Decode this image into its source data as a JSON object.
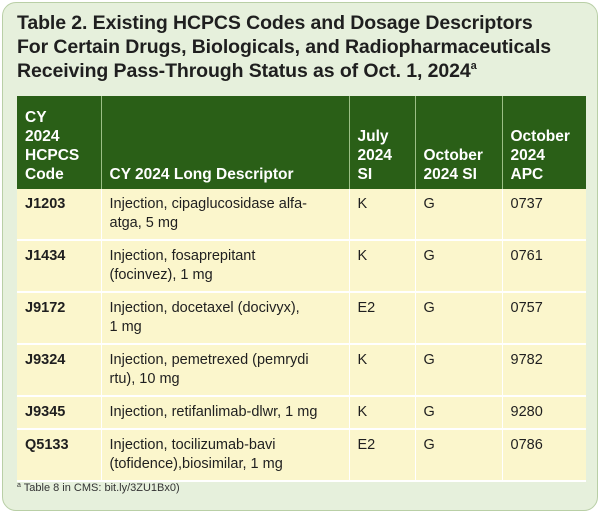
{
  "title": {
    "lines": [
      "Table 2. Existing HCPCS Codes and Dosage Descriptors",
      "For Certain Drugs, Biologicals, and Radiopharmaceuticals",
      "Receiving Pass-Through Status as of Oct. 1, 2024"
    ],
    "footnote_marker": "a"
  },
  "table": {
    "headers": [
      [
        "CY",
        "2024",
        "HCPCS",
        "Code"
      ],
      [
        "CY 2024 Long Descriptor"
      ],
      [
        "July",
        "2024",
        "SI"
      ],
      [
        "October",
        "2024 SI"
      ],
      [
        "October",
        "2024",
        "APC"
      ]
    ],
    "rows": [
      {
        "code": "J1203",
        "descriptor": [
          "Injection, cipaglucosidase alfa-",
          "atga, 5 mg"
        ],
        "july_si": "K",
        "oct_si": "G",
        "apc": "0737"
      },
      {
        "code": "J1434",
        "descriptor": [
          "Injection, fosaprepitant",
          "(focinvez), 1 mg"
        ],
        "july_si": "K",
        "oct_si": "G",
        "apc": "0761"
      },
      {
        "code": "J9172",
        "descriptor": [
          "Injection, docetaxel (docivyx),",
          "1 mg"
        ],
        "july_si": "E2",
        "oct_si": "G",
        "apc": "0757"
      },
      {
        "code": "J9324",
        "descriptor": [
          "Injection, pemetrexed (pemrydi",
          "rtu), 10 mg"
        ],
        "july_si": "K",
        "oct_si": "G",
        "apc": "9782"
      },
      {
        "code": "J9345",
        "descriptor": [
          "Injection, retifanlimab-dlwr, 1 mg"
        ],
        "july_si": "K",
        "oct_si": "G",
        "apc": "9280"
      },
      {
        "code": "Q5133",
        "descriptor": [
          "Injection, tocilizumab-bavi",
          "(tofidence),biosimilar, 1 mg"
        ],
        "july_si": "E2",
        "oct_si": "G",
        "apc": "0786"
      }
    ]
  },
  "footnote": {
    "marker": "a",
    "text": " Table 8 in CMS: bit.ly/3ZU1Bx0)"
  },
  "colors": {
    "card_background": "#e6f0dc",
    "header_background": "#2a5f17",
    "row_background": "#fbf6cc"
  }
}
